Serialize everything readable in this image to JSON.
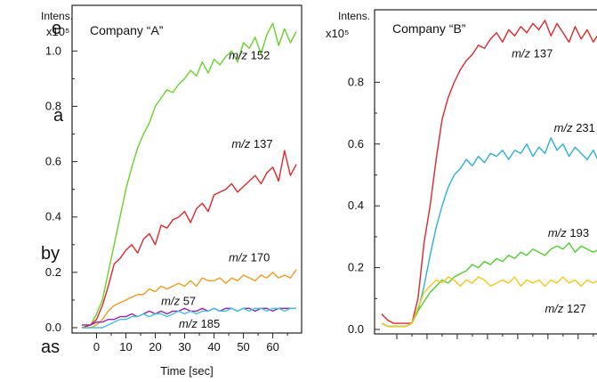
{
  "background_fragments": [
    "e",
    "a",
    "by",
    "as"
  ],
  "chart_data": [
    {
      "type": "line",
      "title": "Company “A”",
      "ylabel_top": "Intens.",
      "ylabel_exp": "x10⁵",
      "xlabel": "Time [sec]",
      "xlim": [
        -5,
        68
      ],
      "ylim": [
        0,
        1.12
      ],
      "xticks": [
        0,
        10,
        20,
        30,
        40,
        50,
        60
      ],
      "yticks": [
        0.0,
        0.2,
        0.4,
        0.6,
        0.8,
        1.0
      ],
      "ytick_labels": [
        "0.0",
        "0.2",
        "0.4",
        "0.6",
        "0.8",
        "1.0"
      ],
      "series": [
        {
          "prefix": "m/z",
          "number": "152",
          "color": "#66d22a",
          "label_x": 45,
          "label_y": 0.97,
          "x": [
            -5,
            -2,
            0,
            2,
            4,
            6,
            8,
            10,
            12,
            14,
            16,
            18,
            20,
            22,
            24,
            26,
            28,
            30,
            32,
            34,
            36,
            38,
            40,
            42,
            44,
            46,
            48,
            50,
            52,
            54,
            56,
            58,
            60,
            62,
            64,
            66,
            68
          ],
          "y": [
            0.0,
            0.01,
            0.05,
            0.1,
            0.2,
            0.3,
            0.4,
            0.5,
            0.58,
            0.65,
            0.7,
            0.74,
            0.8,
            0.83,
            0.86,
            0.85,
            0.88,
            0.9,
            0.93,
            0.91,
            0.96,
            0.92,
            0.97,
            0.95,
            0.98,
            1.0,
            0.96,
            1.03,
            1.01,
            1.05,
            0.99,
            1.06,
            1.1,
            1.02,
            1.08,
            1.03,
            1.07
          ]
        },
        {
          "prefix": "m/z",
          "number": "137",
          "color": "#e0262c",
          "label_x": 46,
          "label_y": 0.65,
          "x": [
            -5,
            -2,
            0,
            2,
            4,
            6,
            8,
            10,
            12,
            14,
            16,
            18,
            20,
            22,
            24,
            26,
            28,
            30,
            32,
            34,
            36,
            38,
            40,
            42,
            44,
            46,
            48,
            50,
            52,
            54,
            56,
            58,
            60,
            62,
            64,
            66,
            68
          ],
          "y": [
            0.0,
            0.01,
            0.03,
            0.08,
            0.15,
            0.23,
            0.25,
            0.28,
            0.3,
            0.27,
            0.32,
            0.34,
            0.3,
            0.37,
            0.36,
            0.39,
            0.4,
            0.42,
            0.38,
            0.43,
            0.45,
            0.42,
            0.48,
            0.49,
            0.5,
            0.52,
            0.49,
            0.51,
            0.53,
            0.55,
            0.52,
            0.56,
            0.58,
            0.53,
            0.64,
            0.55,
            0.59
          ]
        },
        {
          "prefix": "m/z",
          "number": "170",
          "color": "#f29a1a",
          "label_x": 45,
          "label_y": 0.24,
          "x": [
            -5,
            -2,
            0,
            2,
            4,
            6,
            8,
            10,
            12,
            14,
            16,
            18,
            20,
            22,
            24,
            26,
            28,
            30,
            32,
            34,
            36,
            38,
            40,
            42,
            44,
            46,
            48,
            50,
            52,
            54,
            56,
            58,
            60,
            62,
            64,
            66,
            68
          ],
          "y": [
            0.0,
            0.0,
            0.01,
            0.03,
            0.06,
            0.08,
            0.09,
            0.1,
            0.11,
            0.12,
            0.12,
            0.14,
            0.13,
            0.15,
            0.14,
            0.15,
            0.16,
            0.15,
            0.17,
            0.15,
            0.18,
            0.17,
            0.17,
            0.18,
            0.16,
            0.18,
            0.17,
            0.19,
            0.18,
            0.17,
            0.19,
            0.18,
            0.2,
            0.18,
            0.19,
            0.18,
            0.21
          ]
        },
        {
          "prefix": "m/z",
          "number": "57",
          "color": "#9b1fb4",
          "label_x": 22,
          "label_y": 0.082,
          "x": [
            -5,
            -2,
            0,
            2,
            4,
            6,
            8,
            10,
            12,
            14,
            16,
            18,
            20,
            22,
            24,
            26,
            28,
            30,
            32,
            34,
            36,
            38,
            40,
            42,
            44,
            46,
            48,
            50,
            52,
            54,
            56,
            58,
            60,
            62,
            64,
            66,
            68
          ],
          "y": [
            0.01,
            0.01,
            0.02,
            0.02,
            0.03,
            0.03,
            0.04,
            0.04,
            0.05,
            0.04,
            0.05,
            0.06,
            0.05,
            0.06,
            0.05,
            0.06,
            0.06,
            0.07,
            0.06,
            0.06,
            0.07,
            0.06,
            0.07,
            0.06,
            0.07,
            0.07,
            0.06,
            0.07,
            0.07,
            0.06,
            0.07,
            0.07,
            0.06,
            0.07,
            0.07,
            0.07,
            0.07
          ]
        },
        {
          "prefix": "m/z",
          "number": "185",
          "color": "#39c6e2",
          "label_x": 28,
          "label_y": 0.0,
          "x": [
            -5,
            -2,
            0,
            2,
            4,
            6,
            8,
            10,
            12,
            14,
            16,
            18,
            20,
            22,
            24,
            26,
            28,
            30,
            32,
            34,
            36,
            38,
            40,
            42,
            44,
            46,
            48,
            50,
            52,
            54,
            56,
            58,
            60,
            62,
            64,
            66,
            68
          ],
          "y": [
            0.0,
            0.0,
            0.0,
            0.0,
            0.01,
            0.02,
            0.03,
            0.03,
            0.04,
            0.04,
            0.05,
            0.04,
            0.05,
            0.05,
            0.04,
            0.05,
            0.06,
            0.05,
            0.06,
            0.05,
            0.06,
            0.06,
            0.07,
            0.06,
            0.06,
            0.07,
            0.06,
            0.07,
            0.06,
            0.07,
            0.07,
            0.06,
            0.07,
            0.07,
            0.06,
            0.07,
            0.07
          ]
        }
      ]
    },
    {
      "type": "line",
      "title": "Company “B”",
      "ylabel_top": "Intens.",
      "ylabel_exp": "x10⁵",
      "xlim": [
        -5,
        68
      ],
      "ylim": [
        0,
        1.02
      ],
      "xticks": [
        0,
        10,
        20,
        30,
        40,
        50,
        60
      ],
      "xtick_labels": [],
      "yticks": [
        0.0,
        0.2,
        0.4,
        0.6,
        0.8
      ],
      "ytick_labels": [
        "0.0",
        "0.2",
        "0.4",
        "0.6",
        "0.8"
      ],
      "series": [
        {
          "prefix": "m/z",
          "number": "137",
          "color": "#e0262c",
          "label_x": 38,
          "label_y": 0.88,
          "x": [
            -5,
            -3,
            -1,
            1,
            3,
            5,
            7,
            9,
            11,
            13,
            15,
            17,
            19,
            21,
            23,
            25,
            27,
            29,
            31,
            33,
            35,
            37,
            39,
            41,
            43,
            45,
            47,
            49,
            51,
            53,
            55,
            57,
            59,
            61,
            63,
            65,
            67,
            68
          ],
          "y": [
            0.05,
            0.03,
            0.02,
            0.02,
            0.02,
            0.02,
            0.1,
            0.28,
            0.4,
            0.55,
            0.68,
            0.75,
            0.8,
            0.84,
            0.87,
            0.89,
            0.92,
            0.91,
            0.94,
            0.96,
            0.93,
            0.97,
            0.95,
            0.98,
            0.96,
            0.99,
            0.97,
            1.0,
            0.95,
            0.99,
            0.96,
            0.93,
            0.98,
            0.94,
            0.97,
            0.93,
            0.96,
            0.95
          ]
        },
        {
          "prefix": "m/z",
          "number": "231",
          "color": "#2bb0dc",
          "label_x": 52,
          "label_y": 0.64,
          "x": [
            -5,
            -3,
            -1,
            1,
            3,
            5,
            7,
            9,
            11,
            13,
            15,
            17,
            19,
            21,
            23,
            25,
            27,
            29,
            31,
            33,
            35,
            37,
            39,
            41,
            43,
            45,
            47,
            49,
            51,
            53,
            55,
            57,
            59,
            61,
            63,
            65,
            67,
            68
          ],
          "y": [
            0.02,
            0.01,
            0.01,
            0.01,
            0.01,
            0.02,
            0.06,
            0.14,
            0.24,
            0.33,
            0.4,
            0.46,
            0.5,
            0.52,
            0.55,
            0.53,
            0.56,
            0.54,
            0.57,
            0.56,
            0.58,
            0.55,
            0.58,
            0.57,
            0.6,
            0.56,
            0.59,
            0.57,
            0.62,
            0.58,
            0.6,
            0.56,
            0.59,
            0.57,
            0.55,
            0.58,
            0.54,
            0.55
          ]
        },
        {
          "prefix": "m/z",
          "number": "193",
          "color": "#4fcf2c",
          "label_x": 50,
          "label_y": 0.3,
          "x": [
            -5,
            -3,
            -1,
            1,
            3,
            5,
            7,
            9,
            11,
            13,
            15,
            17,
            19,
            21,
            23,
            25,
            27,
            29,
            31,
            33,
            35,
            37,
            39,
            41,
            43,
            45,
            47,
            49,
            51,
            53,
            55,
            57,
            59,
            61,
            63,
            65,
            67,
            68
          ],
          "y": [
            0.02,
            0.01,
            0.01,
            0.01,
            0.01,
            0.02,
            0.06,
            0.09,
            0.12,
            0.14,
            0.16,
            0.15,
            0.17,
            0.18,
            0.19,
            0.21,
            0.2,
            0.22,
            0.21,
            0.23,
            0.22,
            0.24,
            0.23,
            0.25,
            0.24,
            0.26,
            0.25,
            0.24,
            0.26,
            0.27,
            0.26,
            0.28,
            0.25,
            0.27,
            0.26,
            0.25,
            0.26,
            0.25
          ]
        },
        {
          "prefix": "m/z",
          "number": "127",
          "color": "#f2c81a",
          "label_x": 49,
          "label_y": 0.055,
          "x": [
            -5,
            -3,
            -1,
            1,
            3,
            5,
            7,
            9,
            11,
            13,
            15,
            17,
            19,
            21,
            23,
            25,
            27,
            29,
            31,
            33,
            35,
            37,
            39,
            41,
            43,
            45,
            47,
            49,
            51,
            53,
            55,
            57,
            59,
            61,
            63,
            65,
            67,
            68
          ],
          "y": [
            0.02,
            0.01,
            0.01,
            0.01,
            0.01,
            0.02,
            0.07,
            0.12,
            0.14,
            0.16,
            0.15,
            0.17,
            0.16,
            0.14,
            0.16,
            0.15,
            0.17,
            0.16,
            0.14,
            0.15,
            0.16,
            0.15,
            0.17,
            0.14,
            0.16,
            0.15,
            0.16,
            0.14,
            0.16,
            0.15,
            0.17,
            0.15,
            0.16,
            0.14,
            0.16,
            0.15,
            0.16,
            0.15
          ]
        }
      ]
    }
  ]
}
